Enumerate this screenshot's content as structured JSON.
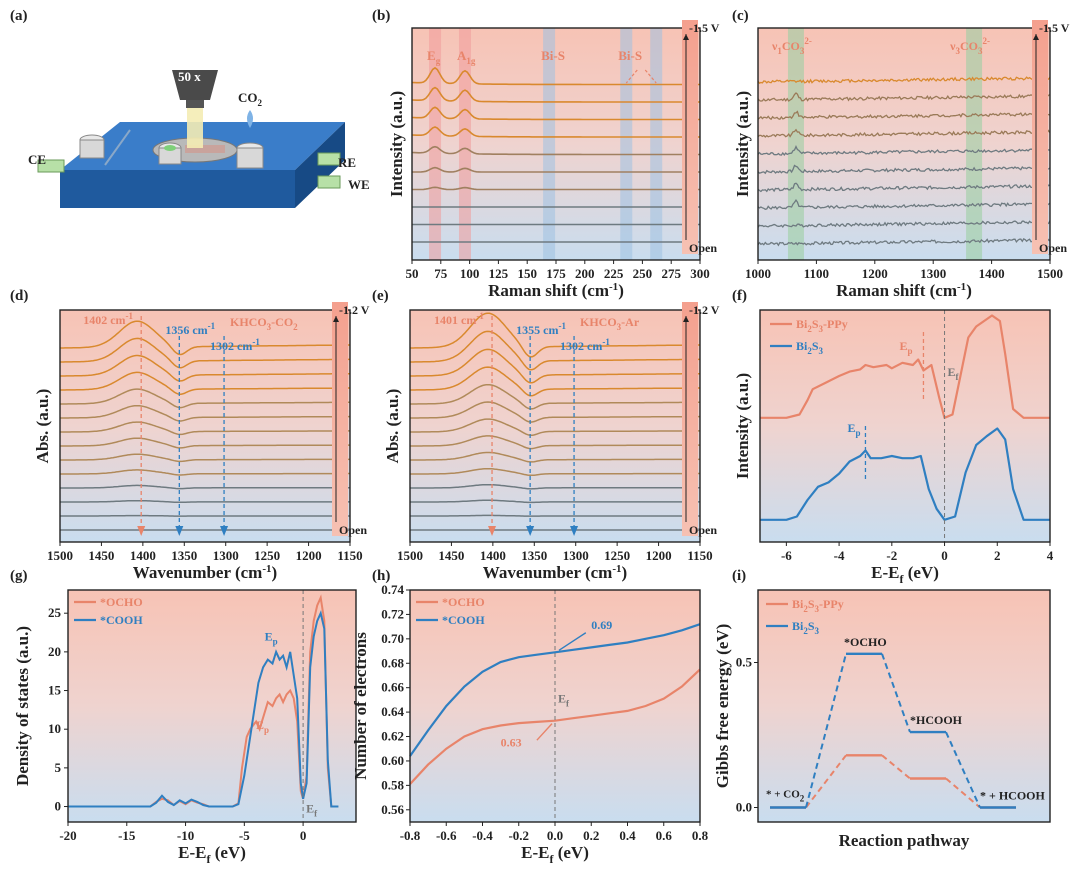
{
  "colors": {
    "orange": "#e8846a",
    "blue": "#2f7fc1",
    "pink_bg": "#f6c5b8",
    "blue_bg": "#cfe0f0",
    "dark_orange": "#d9892e",
    "grey": "#6e7a80",
    "green_band": "#9ccfa4",
    "red_band": "#f19a9a",
    "blue_band": "#9fc1e2"
  },
  "panel_labels": [
    "(a)",
    "(b)",
    "(c)",
    "(d)",
    "(e)",
    "(f)",
    "(g)",
    "(h)",
    "(i)"
  ],
  "panel_a": {
    "lens": "50 x",
    "co2": "CO",
    "co2_sub": "2",
    "ce": "CE",
    "re": "RE",
    "we": "WE"
  },
  "chart_data": [
    {
      "panel": "b",
      "type": "line",
      "xlabel": "Raman shift (cm",
      "xlabel_sup": "-1",
      "xlabel_end": ")",
      "ylabel": "Intensity (a.u.)",
      "xlim": [
        50,
        300
      ],
      "xticks": [
        "50",
        "75",
        "100",
        "125",
        "150",
        "175",
        "200",
        "225",
        "250",
        "275",
        "300"
      ],
      "n_spectra": 10,
      "potential_top": "-1.5 V",
      "potential_bottom": "Open",
      "bands": [
        {
          "name": "E",
          "sub": "g",
          "center": 70
        },
        {
          "name": "A",
          "sub": "1g",
          "center": 96
        },
        {
          "name": "Bi-S",
          "sub": "",
          "center": 169
        },
        {
          "name": "Bi-S",
          "sub": "",
          "center": 236
        },
        {
          "name": "",
          "sub": "",
          "center": 262
        }
      ],
      "peaks_cm1": [
        70,
        96
      ]
    },
    {
      "panel": "c",
      "type": "line",
      "xlabel": "Raman shift (cm",
      "xlabel_sup": "-1",
      "xlabel_end": ")",
      "ylabel": "Intensity (a.u.)",
      "xlim": [
        1000,
        1500
      ],
      "xticks": [
        "1000",
        "1100",
        "1200",
        "1300",
        "1400",
        "1500"
      ],
      "n_spectra": 10,
      "potential_top": "-1.5 V",
      "potential_bottom": "Open",
      "bands": [
        {
          "name": "ν",
          "sub": "1",
          "tail": "CO",
          "tail_sub": "3",
          "sup": "2-",
          "center": 1065
        },
        {
          "name": "ν",
          "sub": "3",
          "tail": "CO",
          "tail_sub": "3",
          "sup": "2-",
          "center": 1370
        }
      ]
    },
    {
      "panel": "d",
      "type": "line",
      "title": "KHCO",
      "title_sub": "3",
      "title_end": "-CO",
      "title_sub2": "2",
      "xlabel": "Wavenumber (cm",
      "xlabel_sup": "-1",
      "xlabel_end": ")",
      "ylabel": "Abs. (a.u.)",
      "xlim": [
        1500,
        1150
      ],
      "xticks": [
        "1500",
        "1450",
        "1400",
        "1350",
        "1300",
        "1250",
        "1200",
        "1150"
      ],
      "n_spectra": 14,
      "potential_top": "-1.2 V",
      "potential_bottom": "Open",
      "markers": [
        {
          "label": "1402 cm",
          "value": 1402,
          "color": "orange"
        },
        {
          "label": "1356 cm",
          "value": 1356,
          "color": "blue"
        },
        {
          "label": "1302 cm",
          "value": 1302,
          "color": "blue"
        }
      ]
    },
    {
      "panel": "e",
      "type": "line",
      "title": "KHCO",
      "title_sub": "3",
      "title_end": "-Ar",
      "title_sub2": "",
      "xlabel": "Wavenumber (cm",
      "xlabel_sup": "-1",
      "xlabel_end": ")",
      "ylabel": "Abs. (a.u.)",
      "xlim": [
        1500,
        1150
      ],
      "xticks": [
        "1500",
        "1450",
        "1400",
        "1350",
        "1300",
        "1250",
        "1200",
        "1150"
      ],
      "n_spectra": 14,
      "potential_top": "-1.2 V",
      "potential_bottom": "Open",
      "markers": [
        {
          "label": "1401 cm",
          "value": 1401,
          "color": "orange"
        },
        {
          "label": "1355 cm",
          "value": 1355,
          "color": "blue"
        },
        {
          "label": "1302 cm",
          "value": 1302,
          "color": "blue"
        }
      ]
    },
    {
      "panel": "f",
      "type": "line",
      "xlabel": "E-E",
      "xlabel_sub": "f",
      "xlabel_end": " (eV)",
      "ylabel": "Intensity (a.u.)",
      "xlim": [
        -7,
        4
      ],
      "xticks": [
        "-6",
        "-4",
        "-2",
        "0",
        "2",
        "4"
      ],
      "series": [
        {
          "name": "Bi",
          "sub1": "2",
          "mid": "S",
          "sub2": "3",
          "tail": "-PPy",
          "color": "orange",
          "x": [
            -7,
            -6,
            -5.5,
            -5.2,
            -5,
            -4.5,
            -4,
            -3.6,
            -3.2,
            -3,
            -2.7,
            -2.2,
            -2,
            -1.6,
            -1.2,
            -1,
            -0.8,
            -0.5,
            -0.2,
            0,
            0.3,
            0.6,
            0.9,
            1.2,
            1.5,
            1.8,
            2.1,
            2.3,
            2.6,
            3,
            4
          ],
          "y": [
            0.02,
            0.02,
            0.05,
            0.18,
            0.28,
            0.34,
            0.4,
            0.44,
            0.46,
            0.5,
            0.48,
            0.5,
            0.47,
            0.52,
            0.5,
            0.55,
            0.45,
            0.5,
            0.2,
            0.02,
            0.05,
            0.4,
            0.75,
            0.85,
            0.9,
            0.95,
            0.9,
            0.6,
            0.1,
            0.02,
            0.02
          ]
        },
        {
          "name": "Bi",
          "sub1": "2",
          "mid": "S",
          "sub2": "3",
          "tail": "",
          "color": "blue",
          "x": [
            -7,
            -6,
            -5.6,
            -5.2,
            -4.8,
            -4.4,
            -4,
            -3.6,
            -3.2,
            -3,
            -2.8,
            -2.4,
            -2,
            -1.6,
            -1.2,
            -0.9,
            -0.6,
            -0.3,
            0,
            0.4,
            0.8,
            1.2,
            1.6,
            2,
            2.3,
            2.6,
            3,
            4
          ],
          "y": [
            0.02,
            0.02,
            0.05,
            0.2,
            0.32,
            0.36,
            0.44,
            0.55,
            0.6,
            0.65,
            0.58,
            0.58,
            0.6,
            0.58,
            0.58,
            0.6,
            0.3,
            0.12,
            0.02,
            0.05,
            0.45,
            0.7,
            0.78,
            0.85,
            0.75,
            0.3,
            0.02,
            0.02
          ]
        }
      ],
      "markers": [
        {
          "label": "E",
          "sub": "p",
          "value": -0.8,
          "series": 0
        },
        {
          "label": "E",
          "sub": "p",
          "value": -3.0,
          "series": 1
        },
        {
          "label": "E",
          "sub": "f",
          "value": 0,
          "series": -1
        }
      ]
    },
    {
      "panel": "g",
      "type": "line",
      "xlabel": "E-E",
      "xlabel_sub": "f",
      "xlabel_end": " (eV)",
      "ylabel": "Density of states (a.u.)",
      "xlim": [
        -20,
        4.5
      ],
      "ylim": [
        -2,
        28
      ],
      "xticks": [
        -20,
        -15,
        -10,
        -5,
        0
      ],
      "yticks": [
        0,
        5,
        10,
        15,
        20,
        25
      ],
      "series": [
        {
          "name": "*OCHO",
          "color": "orange",
          "x": [
            -20,
            -13,
            -12.5,
            -12,
            -11.5,
            -11,
            -10.5,
            -10,
            -9.5,
            -9,
            -8.5,
            -8,
            -6,
            -5.5,
            -5.2,
            -4.8,
            -4.5,
            -4,
            -3.7,
            -3.3,
            -3,
            -2.6,
            -2.3,
            -2,
            -1.7,
            -1.4,
            -1.1,
            -0.8,
            -0.5,
            -0.2,
            0,
            0.3,
            0.6,
            0.9,
            1.2,
            1.5,
            1.8,
            2.1,
            2.4,
            3
          ],
          "y": [
            0,
            0,
            0.6,
            1.0,
            0.8,
            0.2,
            0.7,
            0.3,
            0.8,
            0.5,
            0.3,
            0,
            0,
            0.4,
            5,
            9,
            10,
            11,
            10,
            12,
            13.5,
            13,
            14,
            14.5,
            13.5,
            14.5,
            15,
            14,
            11,
            2,
            1,
            4,
            20,
            24,
            26,
            27,
            24,
            5,
            0,
            0
          ]
        },
        {
          "name": "*COOH",
          "color": "blue",
          "x": [
            -20,
            -13,
            -12.5,
            -12,
            -11.5,
            -11,
            -10.5,
            -10,
            -9.5,
            -9,
            -8.5,
            -8,
            -6,
            -5.5,
            -5,
            -4.6,
            -4.2,
            -3.8,
            -3.4,
            -3,
            -2.6,
            -2.3,
            -2,
            -1.7,
            -1.4,
            -1.1,
            -0.8,
            -0.5,
            -0.2,
            0,
            0.3,
            0.6,
            0.9,
            1.2,
            1.5,
            1.8,
            2.1,
            2.4,
            3
          ],
          "y": [
            0,
            0,
            0.5,
            1.4,
            0.6,
            0.2,
            0.8,
            0.4,
            0.9,
            0.6,
            0.2,
            0,
            0,
            0.3,
            4,
            8,
            12,
            16,
            18,
            19,
            18.5,
            20,
            19,
            19.5,
            18,
            20,
            17,
            14,
            3,
            1,
            3,
            18,
            22,
            24,
            25,
            23,
            6,
            0,
            0
          ]
        }
      ],
      "markers": [
        {
          "label": "E",
          "sub": "p",
          "value": -1.4,
          "series": 1
        },
        {
          "label": "E",
          "sub": "p",
          "value": -1.8,
          "series": 0
        },
        {
          "label": "E",
          "sub": "f",
          "value": 0
        }
      ]
    },
    {
      "panel": "h",
      "type": "line",
      "xlabel": "E-E",
      "xlabel_sub": "f",
      "xlabel_end": " (eV)",
      "ylabel": "Number of electrons",
      "xlim": [
        -0.8,
        0.8
      ],
      "ylim": [
        0.55,
        0.74
      ],
      "xticks": [
        -0.8,
        -0.6,
        -0.4,
        -0.2,
        0.0,
        0.2,
        0.4,
        0.6,
        0.8
      ],
      "yticks": [
        0.56,
        0.58,
        0.6,
        0.62,
        0.64,
        0.66,
        0.68,
        0.7,
        0.72,
        0.74
      ],
      "series": [
        {
          "name": "*OCHO",
          "color": "orange",
          "x": [
            -0.8,
            -0.7,
            -0.6,
            -0.5,
            -0.4,
            -0.3,
            -0.2,
            -0.1,
            0,
            0.1,
            0.2,
            0.3,
            0.4,
            0.5,
            0.6,
            0.7,
            0.8
          ],
          "y": [
            0.581,
            0.597,
            0.61,
            0.62,
            0.626,
            0.629,
            0.631,
            0.632,
            0.633,
            0.635,
            0.637,
            0.639,
            0.641,
            0.645,
            0.651,
            0.661,
            0.675
          ]
        },
        {
          "name": "*COOH",
          "color": "blue",
          "x": [
            -0.8,
            -0.7,
            -0.6,
            -0.5,
            -0.4,
            -0.3,
            -0.2,
            -0.1,
            0,
            0.1,
            0.2,
            0.3,
            0.4,
            0.5,
            0.6,
            0.7,
            0.8
          ],
          "y": [
            0.604,
            0.625,
            0.645,
            0.661,
            0.673,
            0.681,
            0.685,
            0.687,
            0.689,
            0.691,
            0.693,
            0.695,
            0.697,
            0.7,
            0.703,
            0.707,
            0.712
          ]
        }
      ],
      "annotations": [
        {
          "label": "0.69",
          "x": 0,
          "y": 0.689,
          "color": "blue"
        },
        {
          "label": "0.63",
          "x": 0,
          "y": 0.633,
          "color": "orange"
        },
        {
          "label": "E",
          "sub": "f",
          "x": 0
        }
      ]
    },
    {
      "panel": "i",
      "type": "line",
      "xlabel": "Reaction pathway",
      "ylabel": "Gibbs free energy (eV)",
      "ylim": [
        -0.05,
        0.75
      ],
      "yticks": [
        "0.0",
        "0.5"
      ],
      "steps": [
        {
          "label": "* + CO",
          "sub": "2"
        },
        {
          "label": "*OCHO",
          "sub": ""
        },
        {
          "label": "*HCOOH",
          "sub": ""
        },
        {
          "label": "* + HCOOH",
          "sub": ""
        }
      ],
      "series": [
        {
          "name": "Bi",
          "sub1": "2",
          "mid": "S",
          "sub2": "3",
          "tail": "-PPy",
          "color": "orange",
          "values": [
            0.0,
            0.18,
            0.1,
            0.0
          ]
        },
        {
          "name": "Bi",
          "sub1": "2",
          "mid": "S",
          "sub2": "3",
          "tail": "",
          "color": "blue",
          "values": [
            0.0,
            0.53,
            0.26,
            0.0
          ]
        }
      ]
    }
  ]
}
